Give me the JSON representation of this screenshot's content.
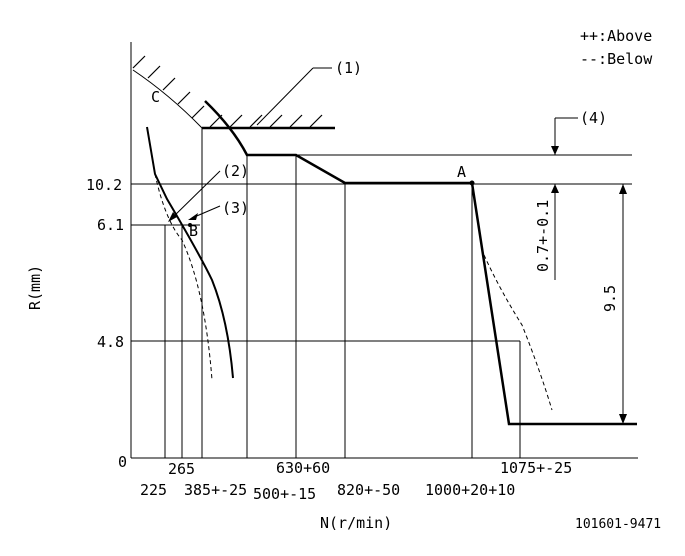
{
  "legend": {
    "above": "++:Above",
    "below": "--:Below"
  },
  "axes": {
    "y_label": "R(mm)",
    "x_label": "N(r/min)",
    "y_ticks": [
      "10.2",
      "6.1",
      "4.8",
      "0"
    ]
  },
  "x_ticks": {
    "t225": "225",
    "t265": "265",
    "t385": "385+-25",
    "t500": "500+-15",
    "t630": "630+60",
    "t820": "820+-50",
    "t1000": "1000+20+10",
    "t1075": "1075+-25"
  },
  "callouts": {
    "c1": "(1)",
    "c2": "(2)",
    "c3": "(3)",
    "c4": "(4)"
  },
  "points": {
    "A": "A",
    "B": "B",
    "C": "C"
  },
  "dimensions": {
    "tolerance": "0.7+-0.1",
    "stroke": "9.5"
  },
  "figure_id": "101601-9471"
}
